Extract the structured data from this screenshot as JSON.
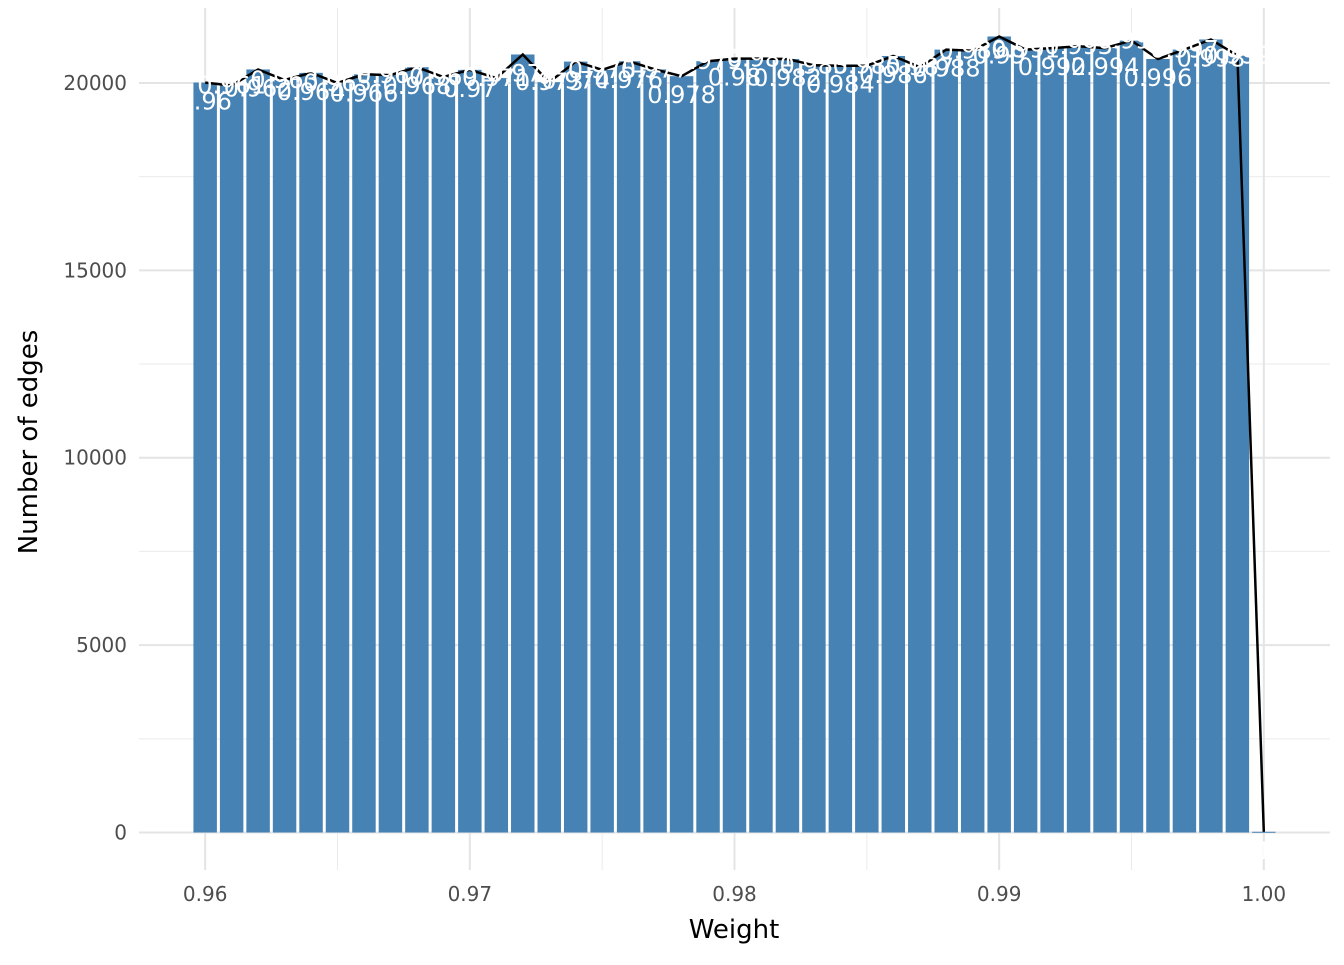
{
  "chart_data": {
    "type": "bar",
    "xlabel": "Weight",
    "ylabel": "Number of edges",
    "xlim": [
      0.9575,
      1.0025
    ],
    "ylim": [
      -1000,
      22000
    ],
    "x_ticks": [
      0.96,
      0.97,
      0.98,
      0.99,
      1.0
    ],
    "x_tick_labels": [
      "0.96",
      "0.97",
      "0.98",
      "0.99",
      "1.00"
    ],
    "y_ticks": [
      0,
      5000,
      10000,
      15000,
      20000
    ],
    "y_tick_labels": [
      "0",
      "5000",
      "10000",
      "15000",
      "20000"
    ],
    "grid": true,
    "bar_color": "#4682B4",
    "line_color": "#000000",
    "label_color": "#ffffff",
    "x": [
      0.96,
      0.961,
      0.962,
      0.963,
      0.964,
      0.965,
      0.966,
      0.967,
      0.968,
      0.969,
      0.97,
      0.971,
      0.972,
      0.973,
      0.974,
      0.975,
      0.976,
      0.977,
      0.978,
      0.979,
      0.98,
      0.981,
      0.982,
      0.983,
      0.984,
      0.985,
      0.986,
      0.987,
      0.988,
      0.989,
      0.99,
      0.991,
      0.992,
      0.993,
      0.994,
      0.995,
      0.996,
      0.997,
      0.998,
      0.999,
      1.0
    ],
    "values": [
      20010,
      19930,
      20360,
      20080,
      20270,
      20000,
      20230,
      20210,
      20420,
      20160,
      20350,
      20130,
      20760,
      20020,
      20570,
      20350,
      20580,
      20360,
      20180,
      20580,
      20650,
      20650,
      20640,
      20470,
      20460,
      20460,
      20720,
      20420,
      20890,
      20860,
      21240,
      20890,
      20930,
      20980,
      20930,
      21130,
      20640,
      20890,
      21160,
      20730,
      20
    ],
    "labels": [
      "0.96",
      "0.961",
      "0.962",
      "0.963",
      "0.964",
      "0.965",
      "0.966",
      "0.967",
      "0.968",
      "0.969",
      "0.97",
      "0.971",
      "0.972",
      "0.973",
      "0.974",
      "0.975",
      "0.976",
      "0.977",
      "0.978",
      "0.979",
      "0.98",
      "0.981",
      "0.982",
      "0.983",
      "0.984",
      "0.985",
      "0.986",
      "0.987",
      "0.988",
      "0.989",
      "0.99",
      "0.991",
      "0.992",
      "0.993",
      "0.994",
      "0.995",
      "0.996",
      "0.997",
      "0.998",
      "0.999",
      "1"
    ]
  }
}
